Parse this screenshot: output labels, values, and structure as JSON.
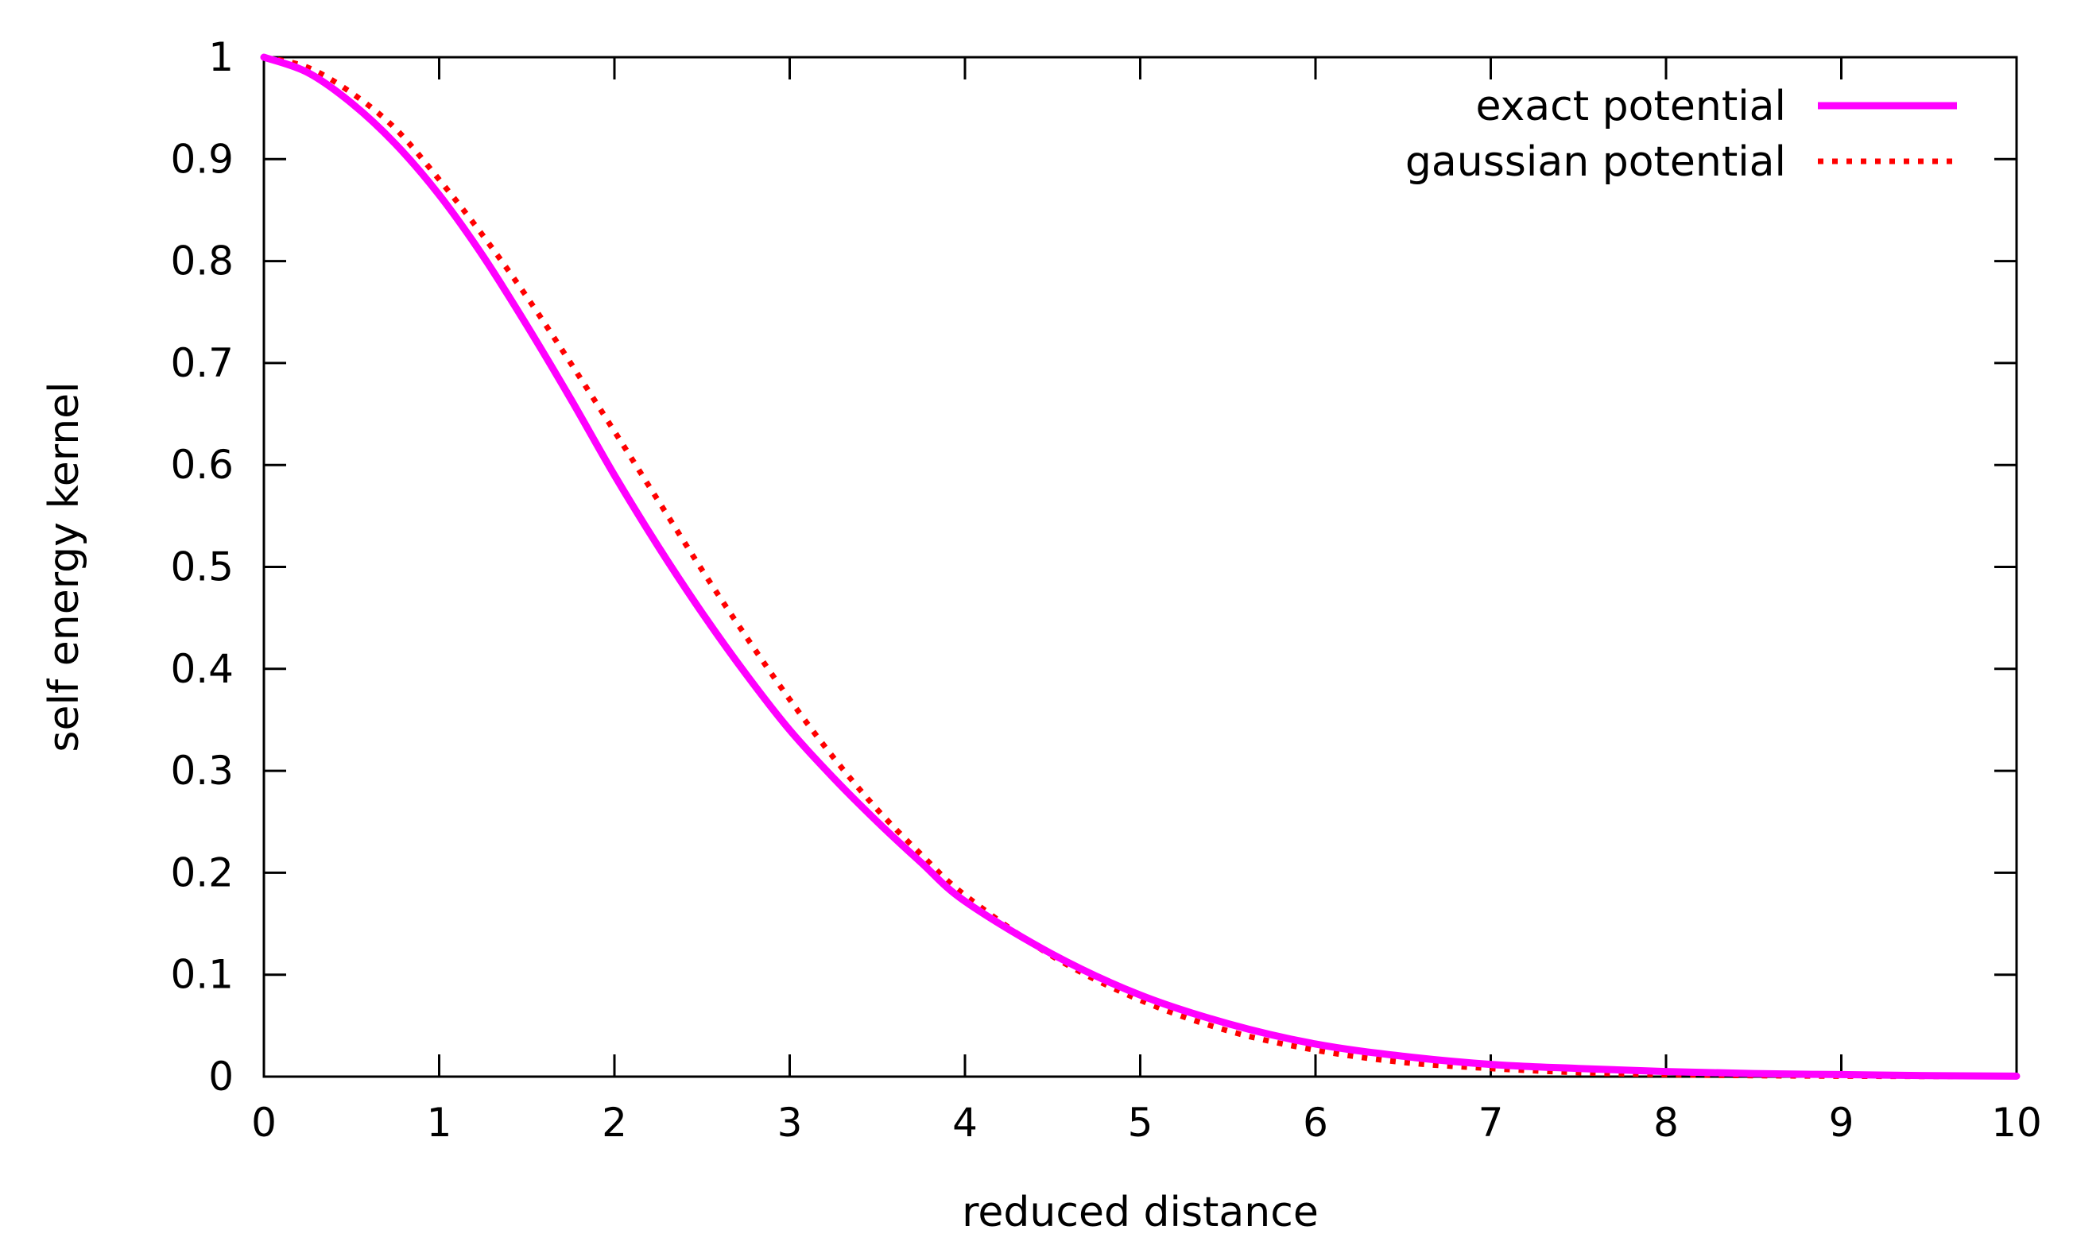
{
  "chart_data": {
    "type": "line",
    "title": "",
    "xlabel": "reduced distance",
    "ylabel": "self energy kernel",
    "xlim": [
      0,
      10
    ],
    "ylim": [
      0,
      1
    ],
    "xticks": [
      0,
      1,
      2,
      3,
      4,
      5,
      6,
      7,
      8,
      9,
      10
    ],
    "yticks": [
      0,
      0.1,
      0.2,
      0.3,
      0.4,
      0.5,
      0.6,
      0.7,
      0.8,
      0.9,
      1
    ],
    "xtick_labels": [
      "0",
      "1",
      "2",
      "3",
      "4",
      "5",
      "6",
      "7",
      "8",
      "9",
      "10"
    ],
    "ytick_labels": [
      "0",
      "0.1",
      "0.2",
      "0.3",
      "0.4",
      "0.5",
      "0.6",
      "0.7",
      "0.8",
      "0.9",
      "1"
    ],
    "grid": false,
    "legend_position": "top-right",
    "x": [
      0,
      0.25,
      0.5,
      0.75,
      1,
      1.25,
      1.5,
      1.75,
      2,
      2.25,
      2.5,
      2.75,
      3,
      3.25,
      3.5,
      3.75,
      4,
      4.5,
      5,
      5.5,
      6,
      6.5,
      7,
      7.5,
      8,
      8.5,
      9,
      9.5,
      10
    ],
    "series": [
      {
        "name": "exact potential",
        "color": "#ff00ff",
        "style": "solid",
        "values": [
          1.0,
          0.985,
          0.955,
          0.915,
          0.865,
          0.805,
          0.737,
          0.665,
          0.59,
          0.52,
          0.455,
          0.395,
          0.34,
          0.293,
          0.25,
          0.21,
          0.172,
          0.12,
          0.08,
          0.052,
          0.032,
          0.02,
          0.012,
          0.008,
          0.005,
          0.003,
          0.002,
          0.001,
          0.0005
        ]
      },
      {
        "name": "gaussian potential",
        "color": "#ff0000",
        "style": "dotted",
        "values": [
          1.0,
          0.99,
          0.965,
          0.93,
          0.88,
          0.825,
          0.765,
          0.7,
          0.633,
          0.565,
          0.497,
          0.432,
          0.37,
          0.313,
          0.262,
          0.218,
          0.178,
          0.118,
          0.075,
          0.045,
          0.026,
          0.014,
          0.008,
          0.004,
          0.002,
          0.001,
          0.0005,
          0.0002,
          0.0001
        ]
      }
    ]
  }
}
